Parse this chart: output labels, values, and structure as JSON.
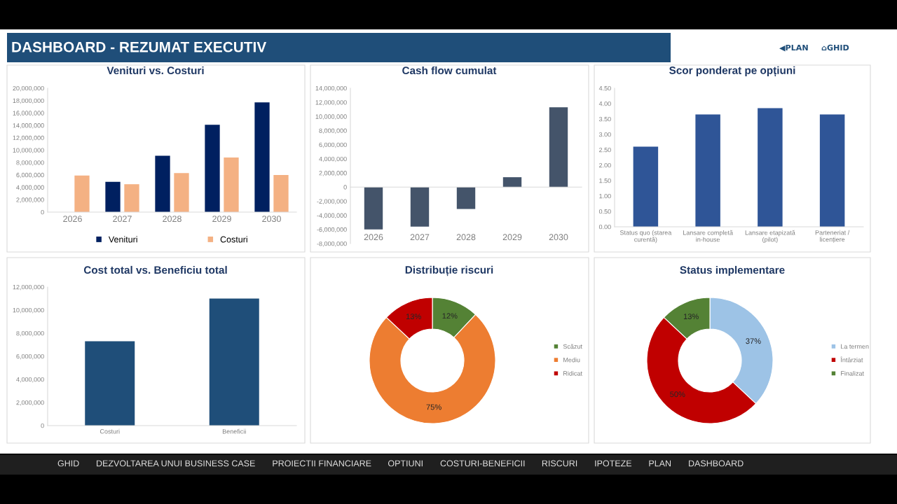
{
  "chart_data": [
    {
      "type": "other",
      "title": "DASHBOARD - REZUMAT EXECUTIV",
      "annotations": [
        "◀PLAN",
        "⌂GHID"
      ]
    },
    {
      "type": "bar",
      "title": "Venituri vs. Costuri",
      "categories": [
        "2026",
        "2027",
        "2028",
        "2029",
        "2030"
      ],
      "series": [
        {
          "name": "Venituri",
          "color": "#002060",
          "values": [
            0,
            4900000,
            9100000,
            14100000,
            17700000
          ]
        },
        {
          "name": "Costuri",
          "color": "#f4b183",
          "values": [
            5900000,
            4500000,
            6300000,
            8800000,
            6000000
          ]
        }
      ],
      "ylim": [
        0,
        20000000
      ],
      "yticks": [
        0,
        {
          "value": 2000000,
          "label": "2,000,000"
        },
        {
          "value": 4000000,
          "label": "4,000,000"
        },
        {
          "value": 6000000,
          "label": "6,000,000"
        },
        {
          "value": 8000000,
          "label": "8,000,000"
        },
        {
          "value": 10000000,
          "label": "10,000,000"
        },
        {
          "value": 12000000,
          "label": "12,000,000"
        },
        {
          "value": 14000000,
          "label": "14,000,000"
        },
        {
          "value": 16000000,
          "label": "16,000,000"
        },
        {
          "value": 18000000,
          "label": "18,000,000"
        },
        {
          "value": 20000000,
          "label": "20,000,000"
        }
      ],
      "legend": "bottom"
    },
    {
      "type": "bar",
      "title": "Cash flow cumulat",
      "categories": [
        "2026",
        "2027",
        "2028",
        "2029",
        "2030"
      ],
      "values": [
        -6000000,
        -5600000,
        -3100000,
        1400000,
        11300000
      ],
      "color": "#44546a",
      "ylim": [
        -8000000,
        14000000
      ],
      "yticks": [
        {
          "value": -8000000,
          "label": "-8,000,000"
        },
        {
          "value": -6000000,
          "label": "-6,000,000"
        },
        {
          "value": -4000000,
          "label": "-4,000,000"
        },
        {
          "value": -2000000,
          "label": "-2,000,000"
        },
        0,
        {
          "value": 2000000,
          "label": "2,000,000"
        },
        {
          "value": 4000000,
          "label": "4,000,000"
        },
        {
          "value": 6000000,
          "label": "6,000,000"
        },
        {
          "value": 8000000,
          "label": "8,000,000"
        },
        {
          "value": 10000000,
          "label": "10,000,000"
        },
        {
          "value": 12000000,
          "label": "12,000,000"
        },
        {
          "value": 14000000,
          "label": "14,000,000"
        }
      ]
    },
    {
      "type": "bar",
      "title": "Scor ponderat pe opțiuni",
      "categories": [
        "Status quo (starea curentă)",
        "Lansare completă in-house",
        "Lansare etapizată (pilot)",
        "Parteneriat / licențiere"
      ],
      "values": [
        2.6,
        3.65,
        3.85,
        3.65
      ],
      "color": "#2f5597",
      "ylim": [
        0,
        4.5
      ],
      "yticks": [
        {
          "value": 0,
          "label": "0.00"
        },
        {
          "value": 0.5,
          "label": "0.50"
        },
        {
          "value": 1,
          "label": "1.00"
        },
        {
          "value": 1.5,
          "label": "1.50"
        },
        {
          "value": 2,
          "label": "2.00"
        },
        {
          "value": 2.5,
          "label": "2.50"
        },
        {
          "value": 3,
          "label": "3.00"
        },
        {
          "value": 3.5,
          "label": "3.50"
        },
        {
          "value": 4,
          "label": "4.00"
        },
        {
          "value": 4.5,
          "label": "4.50"
        }
      ]
    },
    {
      "type": "bar",
      "title": "Cost total vs. Beneficiu total",
      "categories": [
        "Costuri",
        "Beneficii"
      ],
      "values": [
        7300000,
        11000000
      ],
      "color": "#1f4e79",
      "ylim": [
        0,
        12000000
      ],
      "yticks": [
        0,
        {
          "value": 2000000,
          "label": "2,000,000"
        },
        {
          "value": 4000000,
          "label": "4,000,000"
        },
        {
          "value": 6000000,
          "label": "6,000,000"
        },
        {
          "value": 8000000,
          "label": "8,000,000"
        },
        {
          "value": 10000000,
          "label": "10,000,000"
        },
        {
          "value": 12000000,
          "label": "12,000,000"
        }
      ]
    },
    {
      "type": "donut",
      "title": "Distribuție riscuri",
      "categories": [
        "Scăzut",
        "Mediu",
        "Ridicat"
      ],
      "values": [
        12,
        75,
        13
      ],
      "colors": [
        "#548235",
        "#ed7d31",
        "#c00000"
      ],
      "value_labels": [
        "12%",
        "75%",
        "13%"
      ],
      "legend": "right"
    },
    {
      "type": "donut",
      "title": "Status implementare",
      "categories": [
        "La termen",
        "Întârziat",
        "Finalizat"
      ],
      "values": [
        37,
        50,
        13
      ],
      "colors": [
        "#9dc3e6",
        "#c00000",
        "#548235"
      ],
      "value_labels": [
        "37%",
        "50%",
        "13%"
      ],
      "legend": "right"
    },
    {
      "type": "other",
      "annotations": [
        "GHID",
        "DEZVOLTAREA UNUI BUSINESS CASE",
        "PROIECTII FINANCIARE",
        "OPTIUNI",
        "COSTURI-BENEFICII",
        "RISCURI",
        "IPOTEZE",
        "PLAN",
        "DASHBOARD"
      ]
    }
  ]
}
